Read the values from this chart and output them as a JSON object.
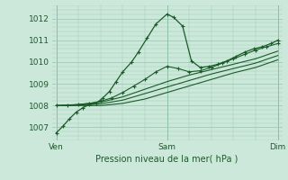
{
  "bg_color": "#cce8da",
  "grid_color": "#99ccb3",
  "line_color": "#1a5c28",
  "xlabel": "Pression niveau de la mer( hPa )",
  "xlabel_color": "#1a5c28",
  "xtick_labels": [
    "Ven",
    "Sam",
    "Dim"
  ],
  "xtick_positions": [
    0.0,
    0.5,
    1.0
  ],
  "ytick_values": [
    1007,
    1008,
    1009,
    1010,
    1011,
    1012
  ],
  "ylim": [
    1006.4,
    1012.6
  ],
  "xlim": [
    -0.02,
    1.02
  ],
  "series1": [
    [
      0.0,
      1006.75
    ],
    [
      0.03,
      1007.05
    ],
    [
      0.06,
      1007.4
    ],
    [
      0.09,
      1007.7
    ],
    [
      0.12,
      1007.9
    ],
    [
      0.15,
      1008.05
    ],
    [
      0.18,
      1008.1
    ],
    [
      0.21,
      1008.35
    ],
    [
      0.24,
      1008.65
    ],
    [
      0.27,
      1009.1
    ],
    [
      0.3,
      1009.55
    ],
    [
      0.34,
      1010.0
    ],
    [
      0.37,
      1010.45
    ],
    [
      0.41,
      1011.1
    ],
    [
      0.45,
      1011.75
    ],
    [
      0.5,
      1012.2
    ],
    [
      0.53,
      1012.05
    ],
    [
      0.57,
      1011.65
    ],
    [
      0.61,
      1010.05
    ],
    [
      0.65,
      1009.75
    ],
    [
      0.69,
      1009.8
    ],
    [
      0.73,
      1009.9
    ],
    [
      0.77,
      1010.05
    ],
    [
      0.81,
      1010.25
    ],
    [
      0.85,
      1010.45
    ],
    [
      0.89,
      1010.6
    ],
    [
      0.93,
      1010.7
    ],
    [
      0.97,
      1010.85
    ],
    [
      1.0,
      1011.0
    ]
  ],
  "series2": [
    [
      0.0,
      1008.0
    ],
    [
      0.05,
      1008.0
    ],
    [
      0.1,
      1008.05
    ],
    [
      0.15,
      1008.1
    ],
    [
      0.2,
      1008.2
    ],
    [
      0.25,
      1008.35
    ],
    [
      0.3,
      1008.6
    ],
    [
      0.35,
      1008.9
    ],
    [
      0.4,
      1009.2
    ],
    [
      0.45,
      1009.55
    ],
    [
      0.5,
      1009.8
    ],
    [
      0.55,
      1009.7
    ],
    [
      0.6,
      1009.55
    ],
    [
      0.65,
      1009.6
    ],
    [
      0.7,
      1009.75
    ],
    [
      0.75,
      1009.95
    ],
    [
      0.8,
      1010.15
    ],
    [
      0.85,
      1010.35
    ],
    [
      0.9,
      1010.55
    ],
    [
      0.95,
      1010.7
    ],
    [
      1.0,
      1010.85
    ]
  ],
  "series3": [
    [
      0.0,
      1008.0
    ],
    [
      0.1,
      1008.05
    ],
    [
      0.2,
      1008.15
    ],
    [
      0.3,
      1008.4
    ],
    [
      0.4,
      1008.75
    ],
    [
      0.5,
      1009.1
    ],
    [
      0.6,
      1009.4
    ],
    [
      0.7,
      1009.65
    ],
    [
      0.8,
      1009.9
    ],
    [
      0.9,
      1010.15
    ],
    [
      1.0,
      1010.5
    ]
  ],
  "series4": [
    [
      0.0,
      1008.0
    ],
    [
      0.1,
      1008.02
    ],
    [
      0.2,
      1008.08
    ],
    [
      0.3,
      1008.25
    ],
    [
      0.4,
      1008.55
    ],
    [
      0.5,
      1008.85
    ],
    [
      0.6,
      1009.15
    ],
    [
      0.7,
      1009.45
    ],
    [
      0.8,
      1009.7
    ],
    [
      0.9,
      1009.95
    ],
    [
      1.0,
      1010.3
    ]
  ],
  "series5": [
    [
      0.0,
      1008.0
    ],
    [
      0.1,
      1008.0
    ],
    [
      0.2,
      1008.0
    ],
    [
      0.3,
      1008.1
    ],
    [
      0.4,
      1008.3
    ],
    [
      0.5,
      1008.6
    ],
    [
      0.6,
      1008.9
    ],
    [
      0.7,
      1009.2
    ],
    [
      0.8,
      1009.5
    ],
    [
      0.9,
      1009.75
    ],
    [
      1.0,
      1010.1
    ]
  ],
  "vline_positions": [
    0.0,
    0.5,
    1.0
  ]
}
